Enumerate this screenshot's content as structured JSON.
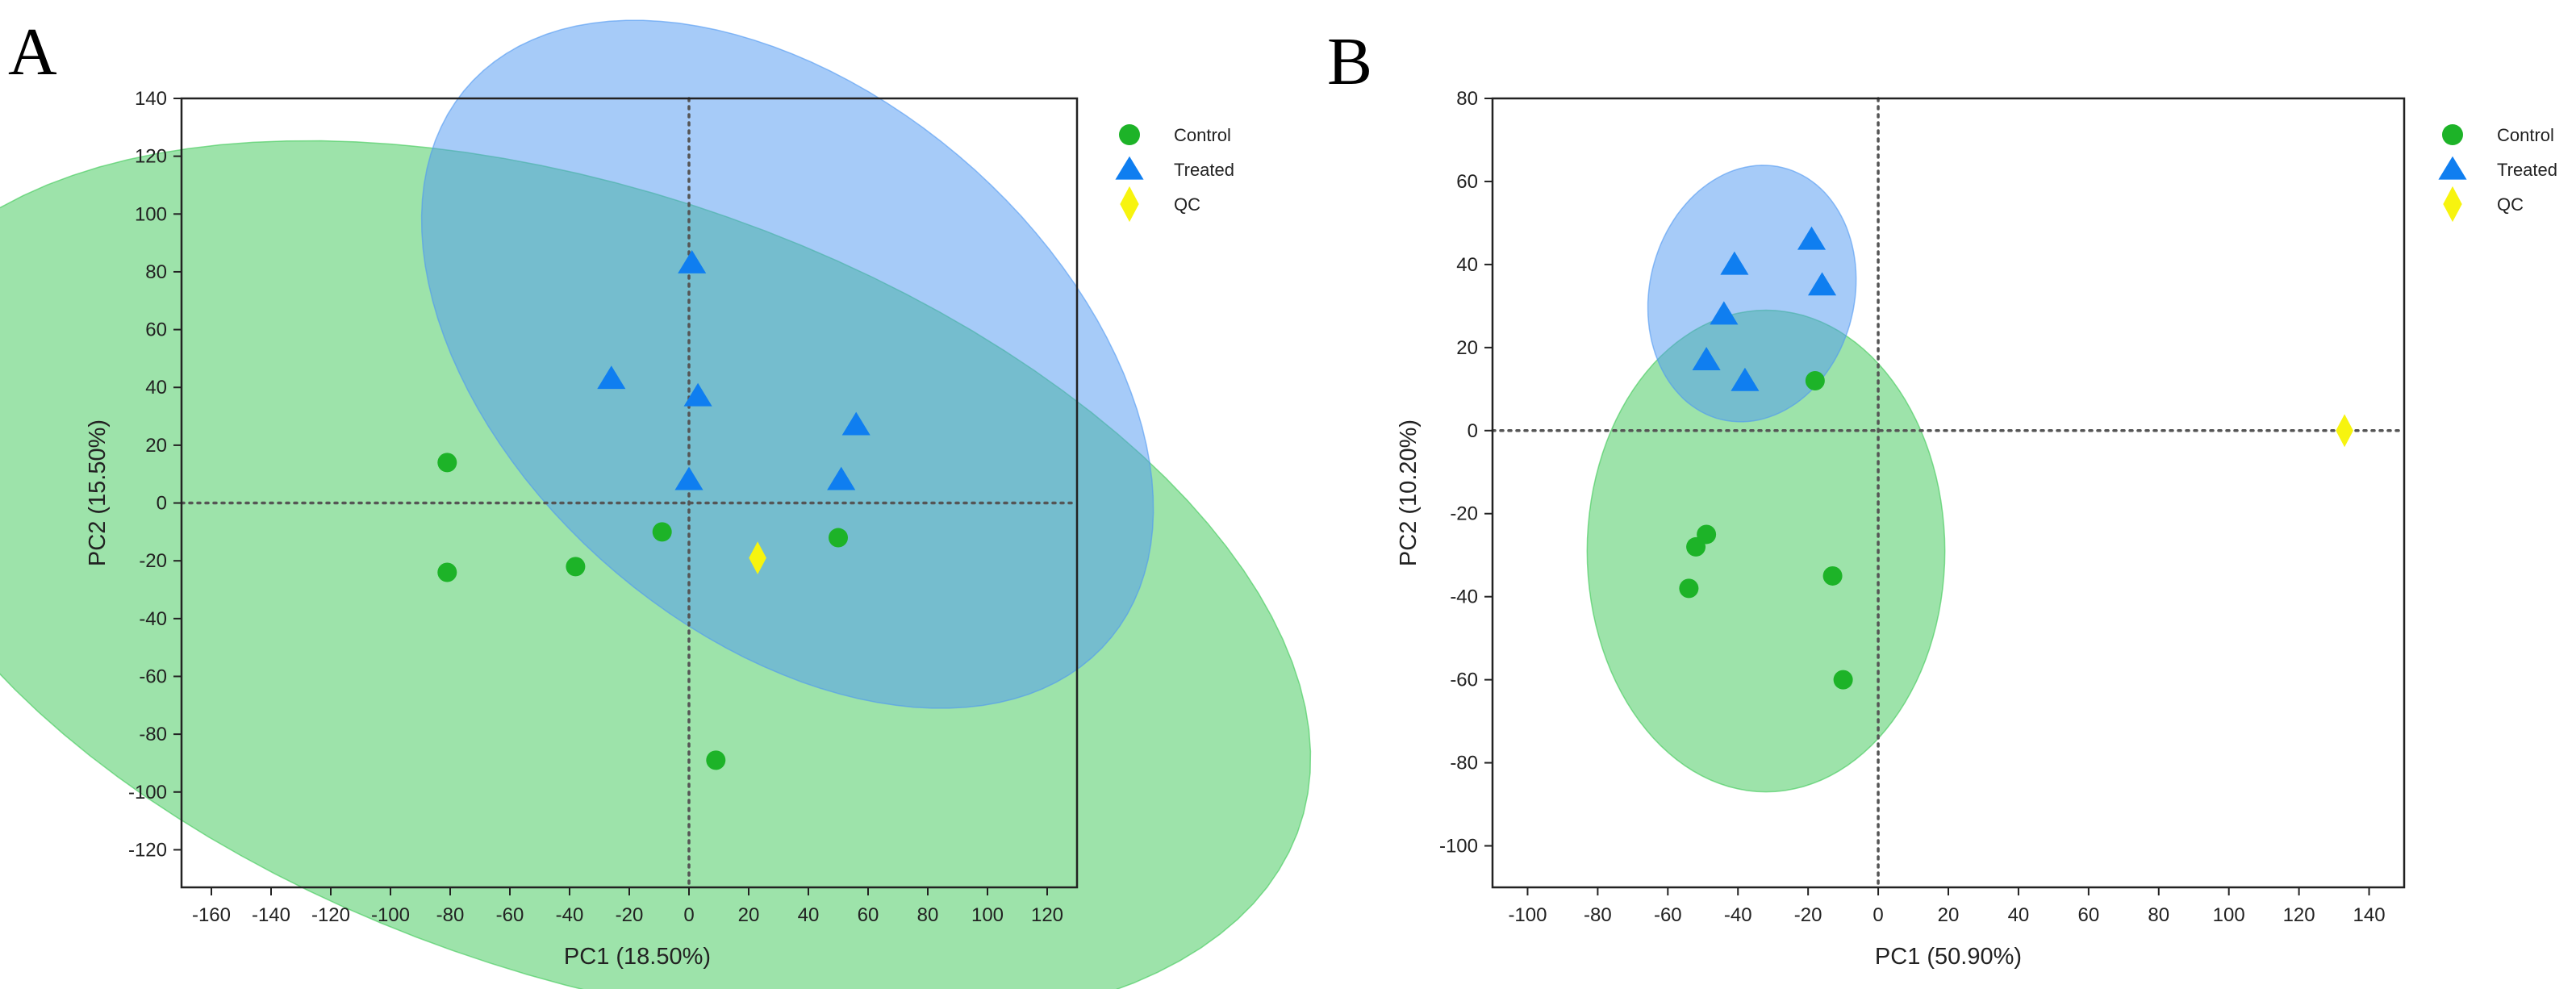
{
  "colors": {
    "control": "#1db328",
    "control_ellipse": "#3cc855",
    "treated": "#0f7ef0",
    "treated_ellipse": "#4e98f2",
    "qc": "#f7f40f",
    "frame": "#222222",
    "refline": "#555555"
  },
  "chart_data": [
    {
      "panel": "A",
      "type": "scatter",
      "xlabel": "PC1 (18.50%)",
      "ylabel": "PC2 (15.50%)",
      "xlim": [
        -170,
        130
      ],
      "ylim": [
        -133,
        140
      ],
      "xticks": [
        -160,
        -140,
        -120,
        -100,
        -80,
        -60,
        -40,
        -20,
        0,
        20,
        40,
        60,
        80,
        100,
        120
      ],
      "yticks": [
        140,
        120,
        100,
        80,
        60,
        40,
        20,
        0,
        -20,
        -40,
        -60,
        -80,
        -100,
        -120
      ],
      "reference_lines": {
        "x": 0,
        "y": 0
      },
      "legend": [
        "Control",
        "Treated",
        "QC"
      ],
      "series": [
        {
          "name": "Control",
          "marker": "circle",
          "points": [
            [
              -81,
              14
            ],
            [
              -81,
              -24
            ],
            [
              -38,
              -22
            ],
            [
              -9,
              -10
            ],
            [
              50,
              -12
            ],
            [
              9,
              -89
            ]
          ]
        },
        {
          "name": "Treated",
          "marker": "triangle",
          "points": [
            [
              1,
              83
            ],
            [
              -26,
              43
            ],
            [
              3,
              37
            ],
            [
              56,
              27
            ],
            [
              0,
              8
            ],
            [
              51,
              8
            ]
          ]
        },
        {
          "name": "QC",
          "marker": "diamond",
          "points": [
            [
              23,
              -19
            ]
          ]
        }
      ],
      "ellipses": [
        {
          "group": "Control",
          "cx": -33,
          "cy": -28,
          "rx": 252,
          "ry": 135,
          "angle": -20
        },
        {
          "group": "Treated",
          "cx": 33,
          "cy": 48,
          "rx": 144,
          "ry": 92,
          "angle": -43
        }
      ]
    },
    {
      "panel": "B",
      "type": "scatter",
      "xlabel": "PC1 (50.90%)",
      "ylabel": "PC2 (10.20%)",
      "xlim": [
        -110,
        150
      ],
      "ylim": [
        -110,
        80
      ],
      "xticks": [
        -100,
        -80,
        -60,
        -40,
        -20,
        0,
        20,
        40,
        60,
        80,
        100,
        120,
        140
      ],
      "yticks": [
        80,
        60,
        40,
        20,
        0,
        -20,
        -40,
        -60,
        -80,
        -100
      ],
      "reference_lines": {
        "x": 0,
        "y": 0
      },
      "legend": [
        "Control",
        "Treated",
        "QC"
      ],
      "series": [
        {
          "name": "Control",
          "marker": "circle",
          "points": [
            [
              -18,
              12
            ],
            [
              -52,
              -28
            ],
            [
              -49,
              -25
            ],
            [
              -54,
              -38
            ],
            [
              -13,
              -35
            ],
            [
              -10,
              -60
            ]
          ]
        },
        {
          "name": "Treated",
          "marker": "triangle",
          "points": [
            [
              -41,
              40
            ],
            [
              -19,
              46
            ],
            [
              -16,
              35
            ],
            [
              -44,
              28
            ],
            [
              -49,
              17
            ],
            [
              -38,
              12
            ]
          ]
        },
        {
          "name": "QC",
          "marker": "diamond",
          "points": [
            [
              133,
              0
            ]
          ]
        }
      ],
      "ellipses": [
        {
          "group": "Control",
          "cx": -32,
          "cy": -29,
          "rx": 51,
          "ry": 58,
          "angle": 0
        },
        {
          "group": "Treated",
          "cx": -36,
          "cy": 33,
          "rx": 28.5,
          "ry": 32,
          "angle": -35
        }
      ]
    }
  ]
}
